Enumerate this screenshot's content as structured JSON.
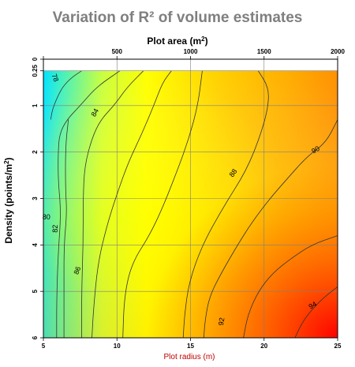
{
  "colors": {
    "bottom_axis_labels": "#c00000",
    "title": "#7f7f7f",
    "grid": "#7f7f7f",
    "contour": "#333333"
  },
  "chart_data": {
    "type": "heatmap",
    "title": "Variation of R² of volume estimates",
    "x_bottom": {
      "label": "Plot radius (m)",
      "range": [
        5,
        25
      ],
      "ticks": [
        5,
        10,
        15,
        20,
        25
      ],
      "color": "#c00000"
    },
    "x_top": {
      "label": "Plot area",
      "unit": "(m",
      "unit_sup": "2",
      "unit_close": ")",
      "range": [
        0,
        2000
      ],
      "ticks": [
        500,
        1000,
        1500,
        2000
      ]
    },
    "y_left": {
      "label": "Density (points/m",
      "label_sup": "2",
      "label_close": ")",
      "range": [
        0,
        6
      ],
      "ticks": [
        "0",
        "0.25",
        "1",
        "2",
        "3",
        "4",
        "5",
        "6"
      ],
      "tick_values": [
        0,
        0.25,
        1,
        2,
        3,
        4,
        5,
        6
      ]
    },
    "colorscale": [
      "#00e5ff",
      "#ffff00",
      "#ffa500",
      "#ff0000"
    ],
    "grid": true,
    "contours": [
      {
        "level": "78",
        "points": [
          [
            7.6,
            0.25
          ],
          [
            6.9,
            0.4
          ],
          [
            6.3,
            0.6
          ],
          [
            5.9,
            0.85
          ],
          [
            5.6,
            1.1
          ],
          [
            5.5,
            1.3
          ]
        ]
      },
      {
        "level": "80",
        "points": [
          [
            10.2,
            0.25
          ],
          [
            8.6,
            0.6
          ],
          [
            7.5,
            1.0
          ],
          [
            6.6,
            1.3
          ],
          [
            6.1,
            1.6
          ],
          [
            6.0,
            2.0
          ],
          [
            6.0,
            2.6
          ],
          [
            6.2,
            3.3
          ],
          [
            6.0,
            4.2
          ],
          [
            5.9,
            5.2
          ],
          [
            5.9,
            6.0
          ]
        ]
      },
      {
        "level": "82",
        "points": [
          [
            6.7,
            1.3
          ],
          [
            6.5,
            1.9
          ],
          [
            6.5,
            2.8
          ],
          [
            6.6,
            3.3
          ],
          [
            6.4,
            4.0
          ],
          [
            6.4,
            5.0
          ],
          [
            6.4,
            6.0
          ]
        ]
      },
      {
        "level": "84",
        "points": [
          [
            11.8,
            0.25
          ],
          [
            10.7,
            0.6
          ],
          [
            9.8,
            1.0
          ],
          [
            8.9,
            1.3
          ],
          [
            8.3,
            1.7
          ],
          [
            7.8,
            2.3
          ],
          [
            7.7,
            3.0
          ],
          [
            7.7,
            4.0
          ],
          [
            7.6,
            5.0
          ],
          [
            7.6,
            6.0
          ]
        ]
      },
      {
        "level": "86",
        "points": [
          [
            13.7,
            0.25
          ],
          [
            13.1,
            0.5
          ],
          [
            12.5,
            1.0
          ],
          [
            11.7,
            1.6
          ],
          [
            10.8,
            2.2
          ],
          [
            10.0,
            2.9
          ],
          [
            9.3,
            3.6
          ],
          [
            8.7,
            4.4
          ],
          [
            8.4,
            5.4
          ],
          [
            8.3,
            6.0
          ]
        ]
      },
      {
        "level": "",
        "points": [
          [
            15.8,
            0.25
          ],
          [
            15.5,
            1.0
          ],
          [
            14.9,
            1.7
          ],
          [
            14.1,
            2.4
          ],
          [
            13.1,
            3.2
          ],
          [
            12.2,
            3.8
          ],
          [
            11.0,
            4.4
          ],
          [
            10.5,
            5.1
          ],
          [
            10.4,
            6.0
          ]
        ]
      },
      {
        "level": "88",
        "points": [
          [
            19.6,
            0.25
          ],
          [
            20.3,
            0.6
          ],
          [
            20.3,
            1.0
          ],
          [
            19.8,
            1.6
          ],
          [
            18.8,
            2.4
          ],
          [
            17.2,
            3.2
          ],
          [
            15.8,
            4.0
          ],
          [
            14.9,
            4.8
          ],
          [
            14.6,
            5.5
          ],
          [
            14.5,
            6.0
          ]
        ]
      },
      {
        "level": "90",
        "points": [
          [
            25,
            1.3
          ],
          [
            24.2,
            1.8
          ],
          [
            22.9,
            2.1
          ],
          [
            21.5,
            2.6
          ],
          [
            20.4,
            3.0
          ],
          [
            19.2,
            3.5
          ],
          [
            18.2,
            4.0
          ],
          [
            17.1,
            4.6
          ],
          [
            16.3,
            5.1
          ],
          [
            16.0,
            5.6
          ],
          [
            15.9,
            6.0
          ]
        ]
      },
      {
        "level": "92",
        "points": [
          [
            25,
            3.8
          ],
          [
            23.2,
            4.0
          ],
          [
            21.8,
            4.3
          ],
          [
            20.6,
            4.6
          ],
          [
            19.6,
            5.0
          ],
          [
            18.9,
            5.5
          ],
          [
            18.6,
            6.0
          ]
        ]
      },
      {
        "level": "94",
        "points": [
          [
            25,
            4.9
          ],
          [
            23.8,
            5.2
          ],
          [
            22.7,
            5.6
          ],
          [
            22.1,
            6.0
          ]
        ]
      }
    ],
    "contour_labels": [
      {
        "text": "78",
        "x": 5.8,
        "y": 0.4,
        "angle": 70
      },
      {
        "text": "84",
        "x": 8.5,
        "y": 1.15,
        "angle": -60
      },
      {
        "text": "80",
        "x": 5.2,
        "y": 3.4,
        "angle": 0
      },
      {
        "text": "82",
        "x": 5.8,
        "y": 3.65,
        "angle": -90
      },
      {
        "text": "86",
        "x": 7.3,
        "y": 4.55,
        "angle": -70
      },
      {
        "text": "88",
        "x": 17.9,
        "y": 2.45,
        "angle": -55
      },
      {
        "text": "90",
        "x": 23.5,
        "y": 1.95,
        "angle": -30
      },
      {
        "text": "92",
        "x": 17.1,
        "y": 5.65,
        "angle": -80
      },
      {
        "text": "94",
        "x": 23.3,
        "y": 5.3,
        "angle": -30
      }
    ]
  }
}
